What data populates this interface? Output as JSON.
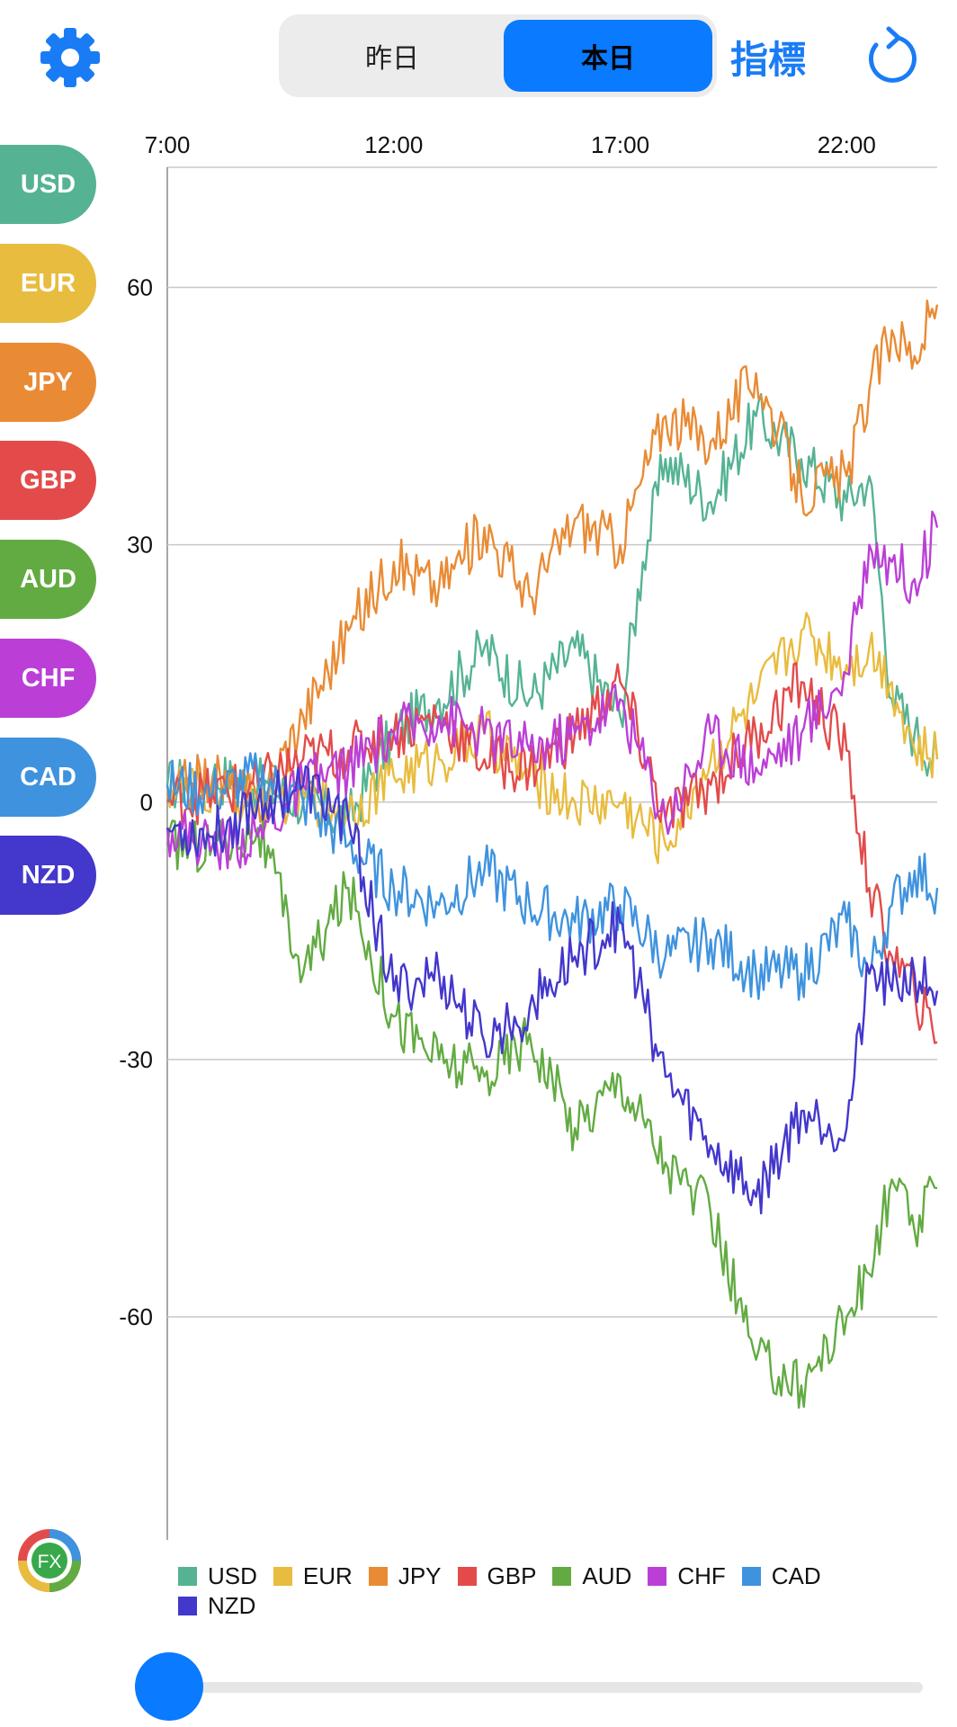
{
  "segmented_control": {
    "yesterday_label": "昨日",
    "today_label": "本日",
    "selected": "本日"
  },
  "indicator_label": "指標",
  "currencies": [
    {
      "code": "USD",
      "color": "#55b394"
    },
    {
      "code": "EUR",
      "color": "#e8bc3e"
    },
    {
      "code": "JPY",
      "color": "#e98b35"
    },
    {
      "code": "GBP",
      "color": "#e34b4b"
    },
    {
      "code": "AUD",
      "color": "#62ab42"
    },
    {
      "code": "CHF",
      "color": "#bb3fd7"
    },
    {
      "code": "CAD",
      "color": "#3f93de"
    },
    {
      "code": "NZD",
      "color": "#4337cc"
    }
  ],
  "accent_color": "#0a7aff",
  "chart_data": {
    "type": "line",
    "title": "",
    "xlabel": "",
    "ylabel": "",
    "x_ticks": [
      "7:00",
      "12:00",
      "17:00",
      "22:00"
    ],
    "xlim": [
      "7:00",
      "24:00"
    ],
    "y_ticks": [
      60,
      30,
      0,
      -30,
      -60
    ],
    "ylim": [
      -86,
      74
    ],
    "grid": true,
    "legend_position": "bottom",
    "series": [
      {
        "name": "USD",
        "color": "#55b394",
        "x": [
          7,
          8,
          9,
          10,
          11,
          12,
          13,
          14,
          15,
          16,
          17,
          17.5,
          18,
          19,
          20,
          21,
          22,
          22.5,
          23,
          23.5,
          24
        ],
        "values": [
          2,
          3,
          2,
          0,
          -2,
          8,
          12,
          18,
          12,
          18,
          10,
          28,
          40,
          35,
          45,
          40,
          35,
          38,
          12,
          8,
          5
        ]
      },
      {
        "name": "EUR",
        "color": "#e8bc3e",
        "x": [
          7,
          8,
          9,
          10,
          11,
          12,
          13,
          14,
          15,
          16,
          17,
          18,
          19,
          20,
          21,
          22,
          22.5,
          23,
          23.5,
          24
        ],
        "values": [
          2,
          1,
          0,
          1,
          -1,
          3,
          5,
          8,
          3,
          0,
          0,
          -5,
          5,
          12,
          20,
          16,
          18,
          14,
          6,
          5
        ]
      },
      {
        "name": "JPY",
        "color": "#e98b35",
        "x": [
          7,
          8,
          9,
          10,
          11,
          12,
          13,
          14,
          15,
          16,
          17,
          17.5,
          18,
          19,
          20,
          21,
          22,
          22.5,
          23,
          23.5,
          24
        ],
        "values": [
          1,
          3,
          0,
          10,
          20,
          28,
          25,
          32,
          24,
          33,
          30,
          38,
          45,
          42,
          50,
          36,
          38,
          48,
          55,
          52,
          58
        ]
      },
      {
        "name": "GBP",
        "color": "#e34b4b",
        "x": [
          7,
          8,
          9,
          10,
          11,
          12,
          13,
          14,
          15,
          16,
          17,
          18,
          19,
          20,
          21,
          22,
          22.5,
          23,
          23.5,
          24
        ],
        "values": [
          0,
          1,
          2,
          5,
          6,
          8,
          10,
          5,
          4,
          8,
          14,
          -2,
          2,
          8,
          14,
          6,
          -10,
          -18,
          -22,
          -28
        ]
      },
      {
        "name": "AUD",
        "color": "#62ab42",
        "x": [
          7,
          8,
          9,
          10,
          11,
          12,
          13,
          14,
          15,
          16,
          17,
          18,
          19,
          20,
          21,
          22,
          22.5,
          23,
          23.5,
          24
        ],
        "values": [
          -5,
          -5,
          -3,
          -20,
          -10,
          -25,
          -30,
          -32,
          -27,
          -38,
          -32,
          -42,
          -48,
          -65,
          -68,
          -60,
          -55,
          -44,
          -50,
          -45
        ]
      },
      {
        "name": "CHF",
        "color": "#bb3fd7",
        "x": [
          7,
          8,
          9,
          10,
          11,
          12,
          13,
          14,
          15,
          16,
          17,
          18,
          19,
          20,
          21,
          22,
          22.5,
          23,
          23.5,
          24
        ],
        "values": [
          -3,
          -5,
          -4,
          2,
          4,
          8,
          10,
          8,
          6,
          8,
          12,
          -2,
          8,
          4,
          8,
          15,
          30,
          28,
          26,
          32
        ]
      },
      {
        "name": "CAD",
        "color": "#3f93de",
        "x": [
          7,
          8,
          9,
          10,
          11,
          12,
          13,
          14,
          15,
          16,
          17,
          18,
          19,
          20,
          21,
          22,
          22.5,
          23,
          23.5,
          24
        ],
        "values": [
          2,
          1,
          3,
          0,
          -5,
          -10,
          -12,
          -8,
          -12,
          -14,
          -12,
          -18,
          -16,
          -20,
          -20,
          -14,
          -20,
          -12,
          -8,
          -10
        ]
      },
      {
        "name": "NZD",
        "color": "#4337cc",
        "x": [
          7,
          8,
          9,
          10,
          11,
          12,
          13,
          14,
          15,
          16,
          17,
          18,
          19,
          20,
          21,
          22,
          22.5,
          23,
          23.5,
          24
        ],
        "values": [
          -3,
          -4,
          0,
          2,
          -2,
          -22,
          -20,
          -28,
          -24,
          -18,
          -14,
          -32,
          -40,
          -46,
          -36,
          -38,
          -20,
          -22,
          -20,
          -22
        ]
      }
    ]
  }
}
